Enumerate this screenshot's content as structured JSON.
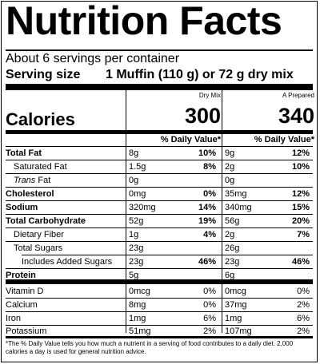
{
  "title": "Nutrition Facts",
  "servings_per_container": "About 6 servings per container",
  "serving_size_label": "Serving size",
  "serving_size_value": "1 Muffin (110 g) or 72 g dry mix",
  "columns": [
    {
      "header": "Dry Mix",
      "calories": "300"
    },
    {
      "header": "A Prepared",
      "calories": "340"
    }
  ],
  "calories_label": "Calories",
  "dv_header": "% Daily Value*",
  "nutrients": [
    {
      "name": "Total Fat",
      "dry": "8g",
      "dry_dv": "10%",
      "prep": "9g",
      "prep_dv": "12%"
    },
    {
      "name": "Saturated Fat",
      "dry": "1.5g",
      "dry_dv": "8%",
      "prep": "2g",
      "prep_dv": "10%"
    },
    {
      "name_italic": "Trans",
      "name_rest": " Fat",
      "dry": "0g",
      "dry_dv": "",
      "prep": "0g",
      "prep_dv": ""
    },
    {
      "name": "Cholesterol",
      "dry": "0mg",
      "dry_dv": "0%",
      "prep": "35mg",
      "prep_dv": "12%"
    },
    {
      "name": "Sodium",
      "dry": "320mg",
      "dry_dv": "14%",
      "prep": "340mg",
      "prep_dv": "15%"
    },
    {
      "name": "Total Carbohydrate",
      "dry": "52g",
      "dry_dv": "19%",
      "prep": "56g",
      "prep_dv": "20%"
    },
    {
      "name": "Dietary Fiber",
      "dry": "1g",
      "dry_dv": "4%",
      "prep": "2g",
      "prep_dv": "7%"
    },
    {
      "name": "Total Sugars",
      "dry": "23g",
      "dry_dv": "",
      "prep": "26g",
      "prep_dv": ""
    },
    {
      "name": "Includes Added Sugars",
      "dry": "23g",
      "dry_dv": "46%",
      "prep": "23g",
      "prep_dv": "46%"
    },
    {
      "name": "Protein",
      "dry": "5g",
      "dry_dv": "",
      "prep": "6g",
      "prep_dv": ""
    }
  ],
  "vitamins": [
    {
      "name": "Vitamin D",
      "dry": "0mcg",
      "dry_dv": "0%",
      "prep": "0mcg",
      "prep_dv": "0%"
    },
    {
      "name": "Calcium",
      "dry": "8mg",
      "dry_dv": "0%",
      "prep": "37mg",
      "prep_dv": "2%"
    },
    {
      "name": "Iron",
      "dry": "1mg",
      "dry_dv": "6%",
      "prep": "1mg",
      "prep_dv": "6%"
    },
    {
      "name": "Potassium",
      "dry": "51mg",
      "dry_dv": "2%",
      "prep": "107mg",
      "prep_dv": "2%"
    }
  ],
  "footnote": "*The % Daily Value tells you how much a nutrient in a serving of food contributes to a daily diet. 2,000 calories a day is used for general nutrition advice."
}
